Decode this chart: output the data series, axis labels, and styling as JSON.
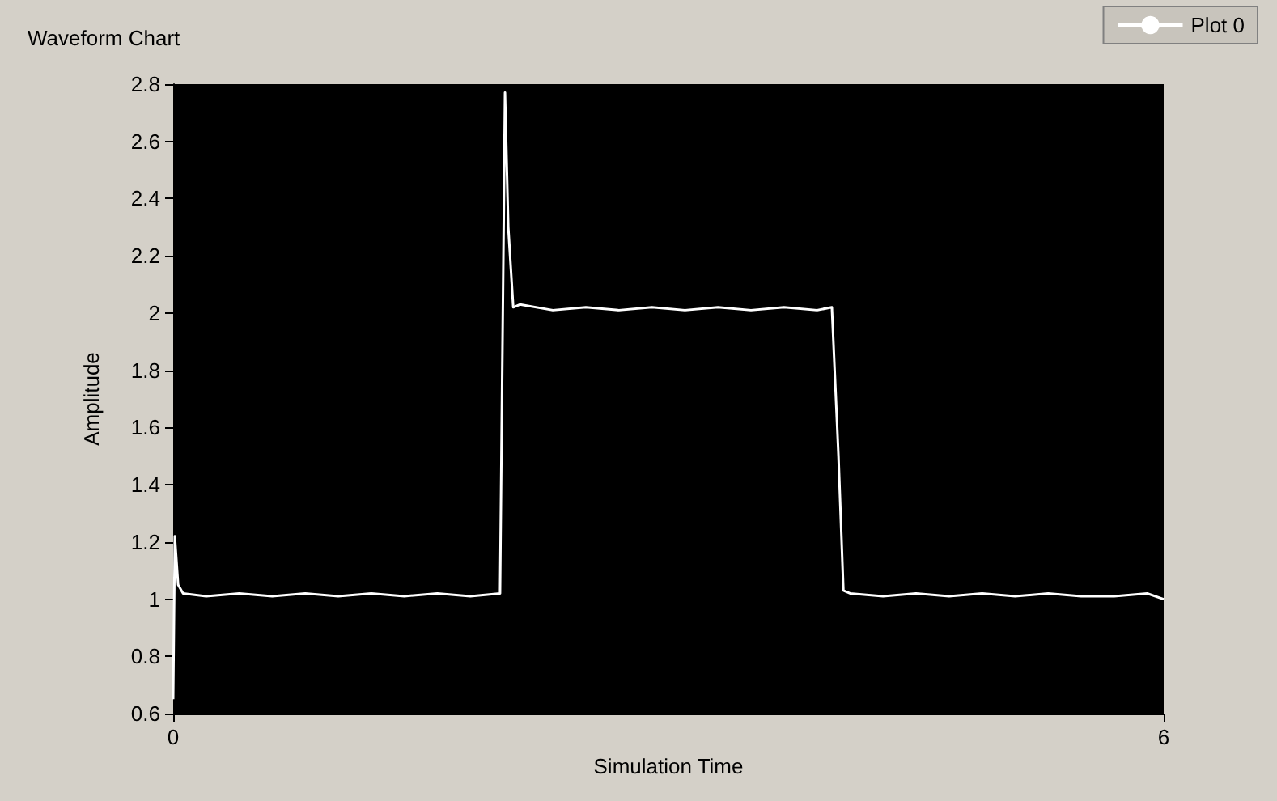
{
  "chart_data": {
    "type": "line",
    "title": "Waveform Chart",
    "xlabel": "Simulation Time",
    "ylabel": "Amplitude",
    "xlim": [
      0,
      6
    ],
    "xticks": [
      0,
      6
    ],
    "ylim": [
      0.6,
      2.8
    ],
    "yticks": [
      0.6,
      0.8,
      1,
      1.2,
      1.4,
      1.6,
      1.8,
      2,
      2.2,
      2.4,
      2.6,
      2.8
    ],
    "grid": false,
    "legend": "top right",
    "marker": "none",
    "line_style": "solid",
    "series": [
      {
        "name": "Plot 0",
        "color": "#ffffff",
        "x": [
          0,
          0.01,
          0.03,
          0.06,
          0.2,
          0.4,
          0.6,
          0.8,
          1.0,
          1.2,
          1.4,
          1.6,
          1.8,
          1.98,
          2.01,
          2.03,
          2.06,
          2.1,
          2.3,
          2.5,
          2.7,
          2.9,
          3.1,
          3.3,
          3.5,
          3.7,
          3.9,
          3.99,
          4.03,
          4.06,
          4.1,
          4.3,
          4.5,
          4.7,
          4.9,
          5.1,
          5.3,
          5.5,
          5.7,
          5.9,
          6
        ],
        "values": [
          0.65,
          1.22,
          1.05,
          1.02,
          1.01,
          1.02,
          1.01,
          1.02,
          1.01,
          1.02,
          1.01,
          1.02,
          1.01,
          1.02,
          2.77,
          2.3,
          2.02,
          2.03,
          2.01,
          2.02,
          2.01,
          2.02,
          2.01,
          2.02,
          2.01,
          2.02,
          2.01,
          2.02,
          1.5,
          1.03,
          1.02,
          1.01,
          1.02,
          1.01,
          1.02,
          1.01,
          1.02,
          1.01,
          1.01,
          1.02,
          1.0
        ]
      }
    ]
  }
}
